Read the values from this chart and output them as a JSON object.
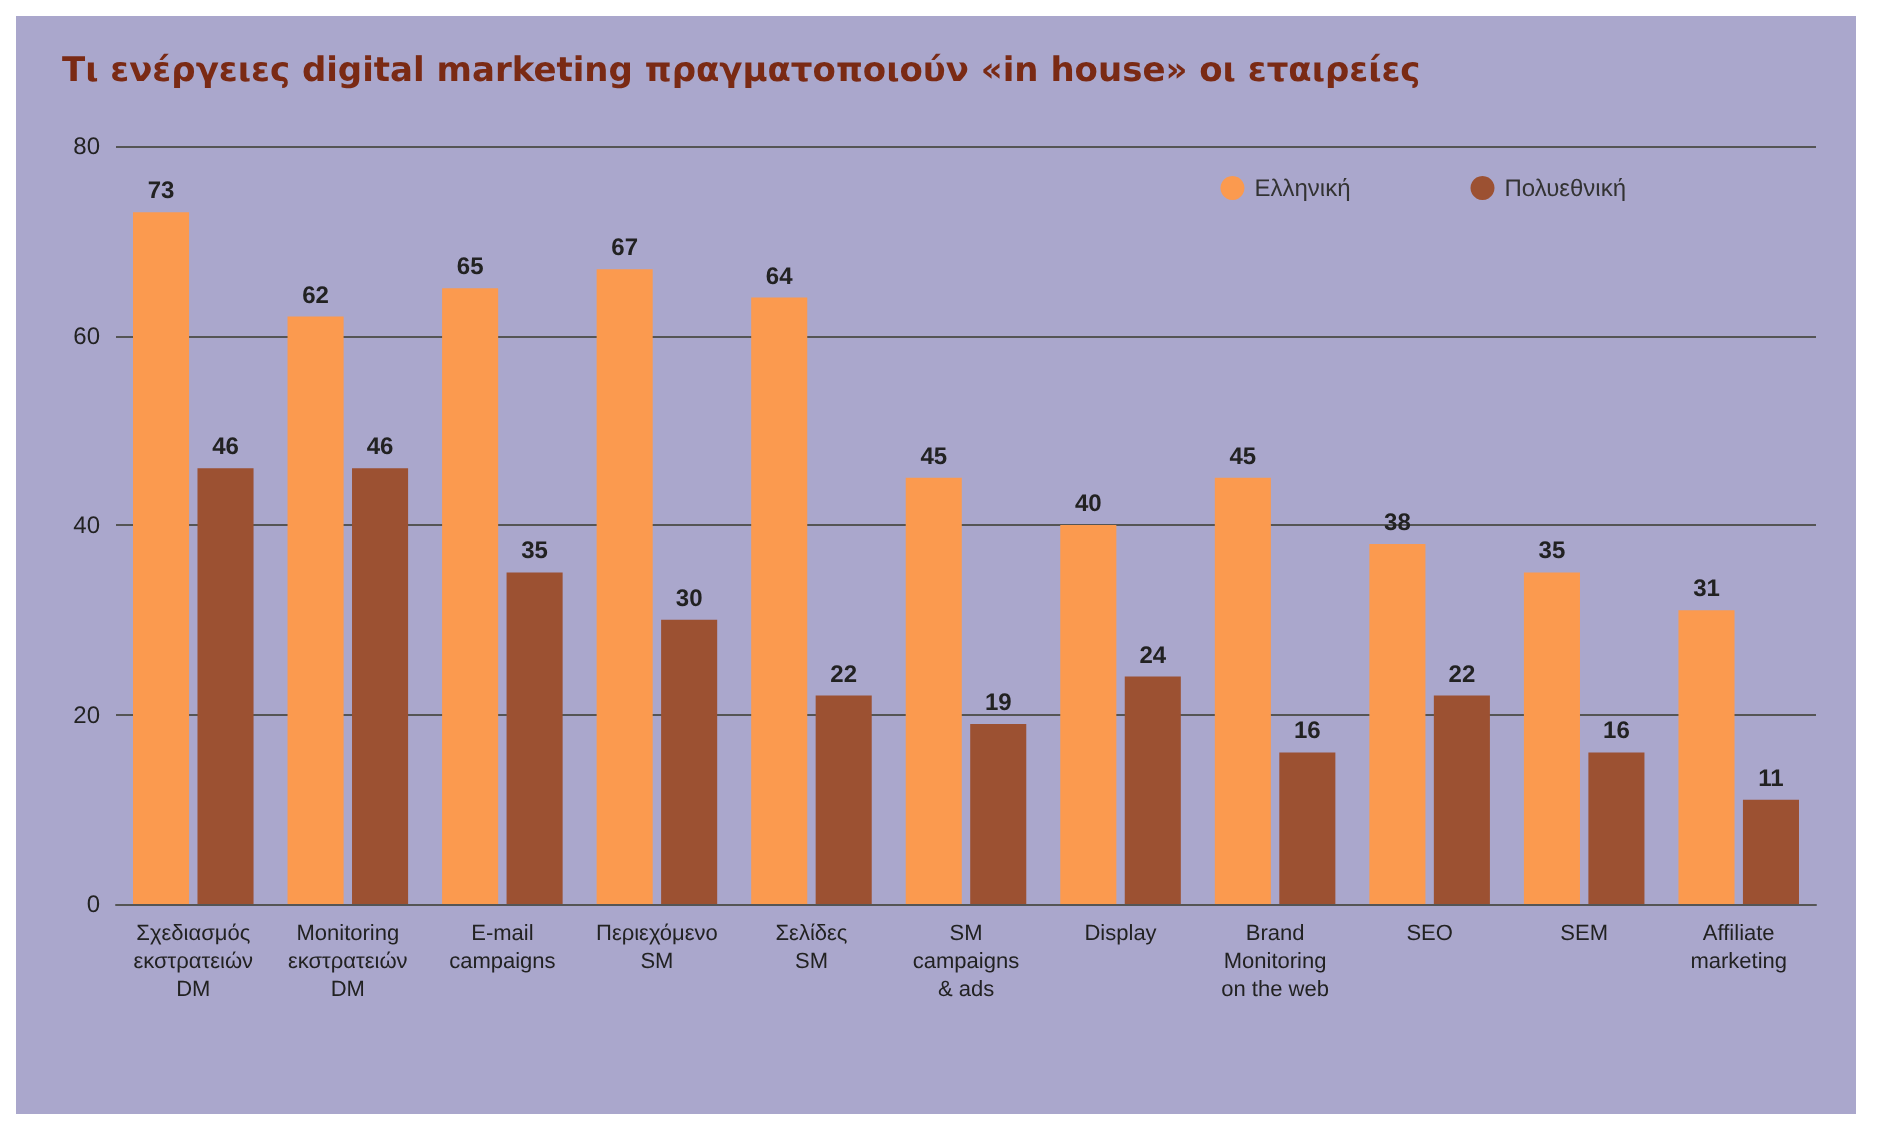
{
  "chart_data": {
    "type": "bar",
    "title": "Τι ενέργειες digital marketing πραγματοποιούν «in house» οι εταιρείες",
    "categories": [
      "Σχεδιασμός\nεκστρατειών\nDM",
      "Monitoring\nεκστρατειών\nDM",
      "E-mail\ncampaigns",
      "Περιεχόμενο\nSM",
      "Σελίδες\nSM",
      "SM\ncampaigns\n& ads",
      "Display",
      "Brand\nMonitoring\non the web",
      "SEO",
      "SEM",
      "Affiliate\nmarketing"
    ],
    "series": [
      {
        "name": "Ελληνική",
        "color": "#fb9a4f",
        "values": [
          73,
          62,
          65,
          67,
          64,
          45,
          40,
          45,
          38,
          35,
          31
        ]
      },
      {
        "name": "Πολυεθνική",
        "color": "#9c5132",
        "values": [
          46,
          46,
          35,
          30,
          22,
          19,
          24,
          16,
          22,
          16,
          11
        ]
      }
    ],
    "ylim": [
      0,
      80
    ],
    "yticks": [
      0,
      20,
      40,
      60,
      80
    ],
    "grid": "y",
    "legend": "top right",
    "data_labels": true
  }
}
